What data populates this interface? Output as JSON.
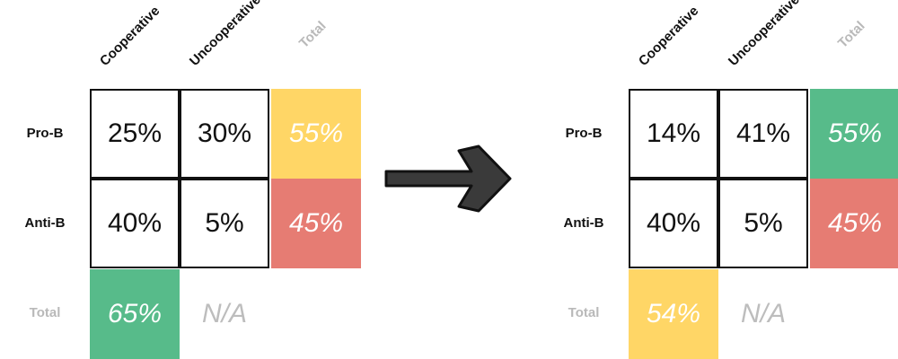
{
  "colors": {
    "yellow": "#FFD666",
    "red": "#E67C73",
    "green": "#57BB8A",
    "border": "#111111"
  },
  "left": {
    "col_headers": [
      "Cooperative",
      "Uncooperative",
      "Total"
    ],
    "row_headers": [
      "Pro-B",
      "Anti-B",
      "Total"
    ],
    "cells": [
      [
        "25%",
        "30%"
      ],
      [
        "40%",
        "5%"
      ]
    ],
    "row_totals": [
      "55%",
      "45%"
    ],
    "row_total_colors": [
      "yellow",
      "red"
    ],
    "col_total": "65%",
    "col_total_color": "green",
    "na": "N/A"
  },
  "right": {
    "col_headers": [
      "Cooperative",
      "Uncooperative",
      "Total"
    ],
    "row_headers": [
      "Pro-B",
      "Anti-B",
      "Total"
    ],
    "cells": [
      [
        "14%",
        "41%"
      ],
      [
        "40%",
        "5%"
      ]
    ],
    "row_totals": [
      "55%",
      "45%"
    ],
    "row_total_colors": [
      "green",
      "red"
    ],
    "col_total": "54%",
    "col_total_color": "yellow",
    "na": "N/A"
  },
  "arrow": {
    "icon": "right-arrow-icon"
  }
}
